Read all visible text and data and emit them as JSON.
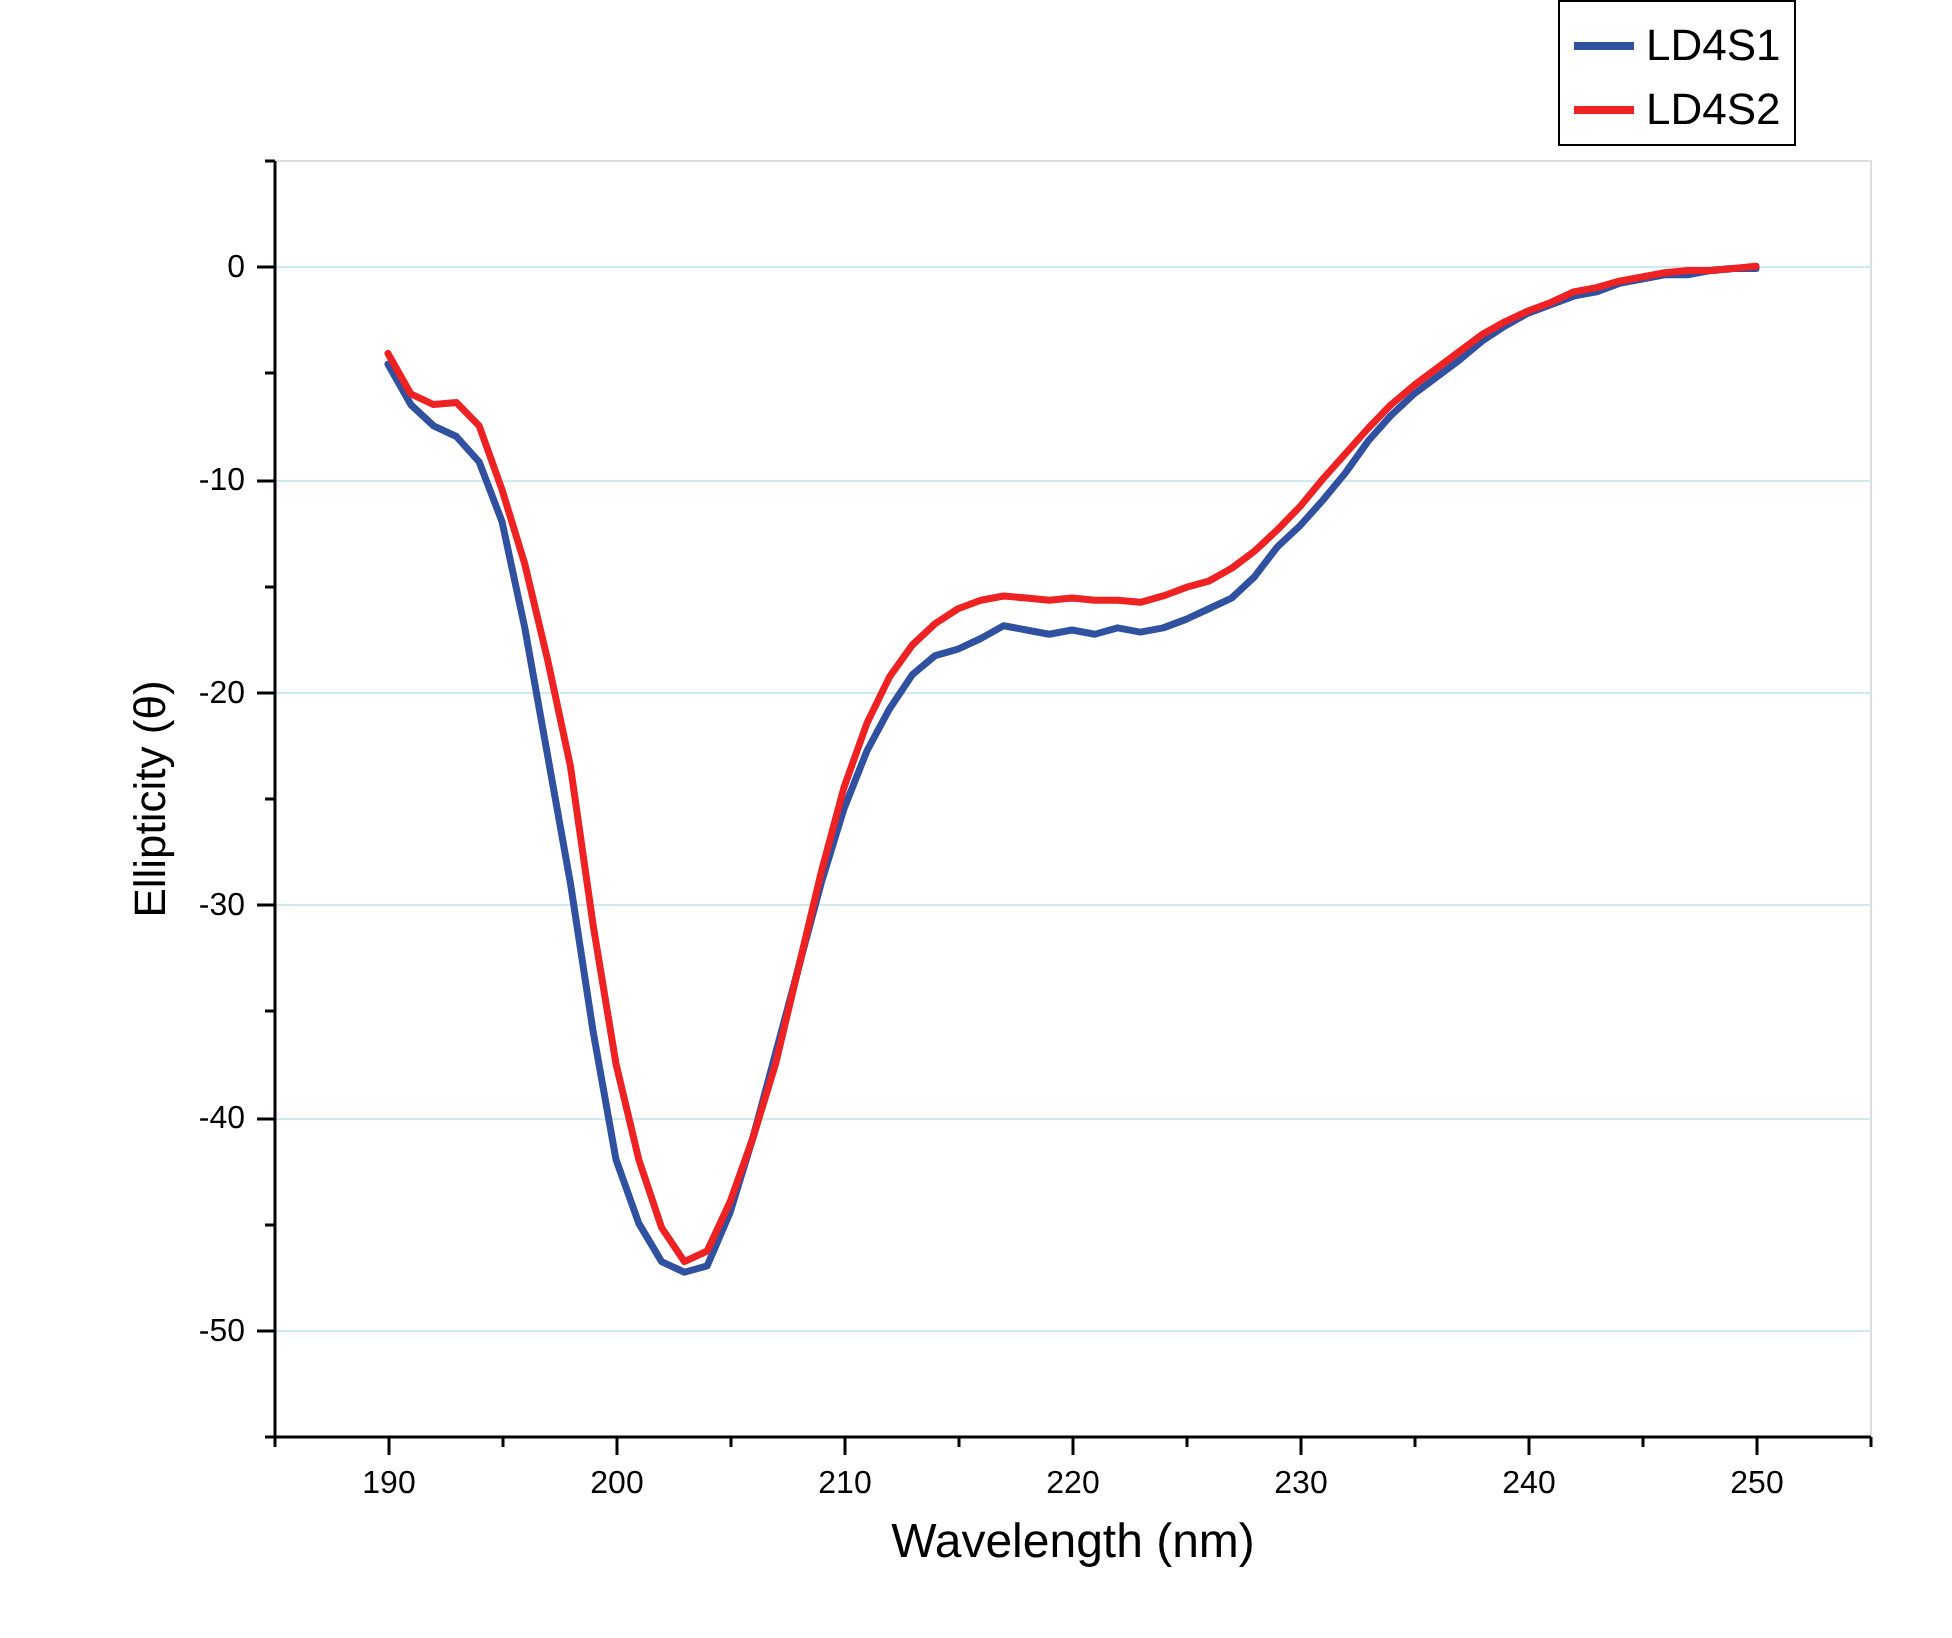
{
  "chart_data": {
    "type": "line",
    "xlabel": "Wavelength (nm)",
    "ylabel": "Ellipticity (θ)",
    "x": [
      190,
      191,
      192,
      193,
      194,
      195,
      196,
      197,
      198,
      199,
      200,
      201,
      202,
      203,
      204,
      205,
      206,
      207,
      208,
      209,
      210,
      211,
      212,
      213,
      214,
      215,
      216,
      217,
      218,
      219,
      220,
      221,
      222,
      223,
      224,
      225,
      226,
      227,
      228,
      229,
      230,
      231,
      232,
      233,
      234,
      235,
      236,
      237,
      238,
      239,
      240,
      241,
      242,
      243,
      244,
      245,
      246,
      247,
      248,
      249,
      250
    ],
    "series": [
      {
        "name": "LD4S1",
        "color": "#3050a0",
        "values": [
          -4.6,
          -6.5,
          -7.5,
          -8.0,
          -9.2,
          -12,
          -17,
          -23,
          -29,
          -36,
          -42,
          -45,
          -46.8,
          -47.3,
          -47.0,
          -44.5,
          -41,
          -37,
          -33,
          -29,
          -25.5,
          -22.8,
          -20.8,
          -19.2,
          -18.3,
          -18.0,
          -17.5,
          -16.9,
          -17.1,
          -17.3,
          -17.1,
          -17.3,
          -17.0,
          -17.2,
          -17.0,
          -16.6,
          -16.1,
          -15.6,
          -14.6,
          -13.2,
          -12.2,
          -11.0,
          -9.7,
          -8.2,
          -7.0,
          -6.0,
          -5.2,
          -4.4,
          -3.5,
          -2.8,
          -2.2,
          -1.8,
          -1.4,
          -1.2,
          -0.8,
          -0.6,
          -0.4,
          -0.4,
          -0.2,
          -0.1,
          -0.1
        ]
      },
      {
        "name": "LD4S2",
        "color": "#ee2222",
        "values": [
          -4.1,
          -6.0,
          -6.5,
          -6.4,
          -7.5,
          -10.5,
          -14,
          -18.5,
          -23.5,
          -31,
          -37.5,
          -42,
          -45.2,
          -46.8,
          -46.3,
          -44,
          -41,
          -37.5,
          -33,
          -28.5,
          -24.5,
          -21.5,
          -19.3,
          -17.8,
          -16.8,
          -16.1,
          -15.7,
          -15.5,
          -15.6,
          -15.7,
          -15.6,
          -15.7,
          -15.7,
          -15.8,
          -15.5,
          -15.1,
          -14.8,
          -14.2,
          -13.4,
          -12.4,
          -11.3,
          -10.0,
          -8.8,
          -7.6,
          -6.5,
          -5.6,
          -4.8,
          -4.0,
          -3.2,
          -2.6,
          -2.1,
          -1.7,
          -1.2,
          -1.0,
          -0.7,
          -0.5,
          -0.3,
          -0.2,
          -0.2,
          -0.1,
          0.0
        ]
      }
    ],
    "xlim": [
      185,
      255
    ],
    "xticks": [
      {
        "value": 185,
        "label": null
      },
      190,
      {
        "value": 195,
        "label": null
      },
      200,
      {
        "value": 205,
        "label": null
      },
      210,
      {
        "value": 215,
        "label": null
      },
      220,
      {
        "value": 225,
        "label": null
      },
      230,
      {
        "value": 235,
        "label": null
      },
      240,
      {
        "value": 245,
        "label": null
      },
      250,
      {
        "value": 255,
        "label": null
      }
    ],
    "ylim": [
      -55,
      5
    ],
    "yticks": [
      {
        "value": -55,
        "label": null
      },
      -50,
      {
        "value": -45,
        "label": null
      },
      -40,
      {
        "value": -35,
        "label": null
      },
      -30,
      {
        "value": -25,
        "label": null
      },
      -20,
      {
        "value": -15,
        "label": null
      },
      -10,
      {
        "value": -5,
        "label": null
      },
      0,
      {
        "value": 5,
        "label": null
      }
    ],
    "grid": "y",
    "legend": "top right",
    "line_style": "solid",
    "marker": "none"
  }
}
